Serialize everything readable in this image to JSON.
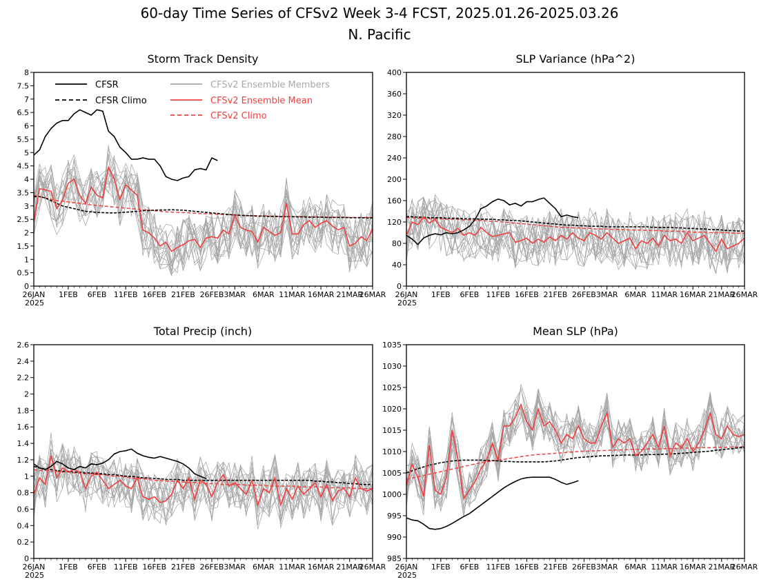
{
  "figure": {
    "title_line1": "60-day Time Series of CFSv2 Week 3-4 FCST, 2025.01.26-2025.03.26",
    "title_line2": "N. Pacific"
  },
  "colors": {
    "cfsr": "#000000",
    "cfsr_climo": "#000000",
    "members": "#a8a8a8",
    "ens_mean": "#f04040",
    "cfsv2_climo": "#f04040"
  },
  "legend": {
    "cfsr": "CFSR",
    "cfsr_climo": "CFSR Climo",
    "members": "CFSv2 Ensemble Members",
    "ens_mean": "CFSv2 Ensemble Mean",
    "cfsv2_climo": "CFSv2 Climo"
  },
  "x_axis": {
    "tick_days": [
      0,
      6,
      11,
      16,
      21,
      26,
      31,
      35,
      40,
      45,
      50,
      55,
      59
    ],
    "tick_labels": [
      "26JAN",
      "1FEB",
      "6FEB",
      "11FEB",
      "16FEB",
      "21FEB",
      "26FEB",
      "3MAR",
      "6MAR",
      "11MAR",
      "16MAR",
      "21MAR",
      "26MAR"
    ],
    "year_label": "2025"
  },
  "chart_data": [
    {
      "type": "line",
      "title": "Storm Track Density",
      "ylim": [
        0,
        8
      ],
      "yticks": [
        0,
        0.5,
        1,
        1.5,
        2,
        2.5,
        3,
        3.5,
        4,
        4.5,
        5,
        5.5,
        6,
        6.5,
        7,
        7.5,
        8
      ],
      "ytick_labels": [
        "0",
        "0.5",
        "1",
        "1.5",
        "2",
        "2.5",
        "3",
        "3.5",
        "4",
        "4.5",
        "5",
        "5.5",
        "6",
        "6.5",
        "7",
        "7.5",
        "8"
      ],
      "members_base": 2.3,
      "members_spread": 1.0,
      "cfsr": [
        4.9,
        5.1,
        5.6,
        5.9,
        6.1,
        6.2,
        6.2,
        6.45,
        6.6,
        6.5,
        6.4,
        6.6,
        6.55,
        5.8,
        5.6,
        5.2,
        5.0,
        4.75,
        4.75,
        4.8,
        4.75,
        4.75,
        4.5,
        4.1,
        4.0,
        3.95,
        4.05,
        4.1,
        4.35,
        4.4,
        4.35,
        4.8,
        4.7
      ],
      "cfsr_climo": [
        3.35,
        3.35,
        3.3,
        3.2,
        3.1,
        3.0,
        2.95,
        2.9,
        2.85,
        2.8,
        2.78,
        2.76,
        2.75,
        2.74,
        2.74,
        2.75,
        2.77,
        2.78,
        2.8,
        2.82,
        2.83,
        2.84,
        2.85,
        2.85,
        2.86,
        2.85,
        2.84,
        2.82,
        2.8,
        2.78,
        2.76,
        2.74,
        2.72,
        2.7,
        2.68,
        2.66,
        2.65,
        2.64,
        2.63,
        2.62,
        2.62,
        2.61,
        2.61,
        2.6,
        2.6,
        2.6,
        2.59,
        2.59,
        2.58,
        2.58,
        2.58,
        2.57,
        2.57,
        2.57,
        2.57,
        2.56,
        2.56,
        2.56,
        2.55,
        2.55
      ],
      "cfsv2_climo": [
        3.4,
        3.35,
        3.3,
        3.25,
        3.2,
        3.18,
        3.15,
        3.12,
        3.1,
        3.07,
        3.04,
        3.02,
        3.0,
        2.98,
        2.96,
        2.94,
        2.92,
        2.9,
        2.88,
        2.86,
        2.84,
        2.82,
        2.8,
        2.78,
        2.77,
        2.76,
        2.75,
        2.74,
        2.73,
        2.72,
        2.71,
        2.7,
        2.69,
        2.68,
        2.67,
        2.66,
        2.65,
        2.64,
        2.64,
        2.63,
        2.63,
        2.62,
        2.62,
        2.61,
        2.61,
        2.6,
        2.6,
        2.6,
        2.59,
        2.59,
        2.59,
        2.58,
        2.58,
        2.58,
        2.58,
        2.57,
        2.57,
        2.57,
        2.57,
        2.57
      ],
      "ens_mean": [
        2.4,
        3.65,
        3.6,
        3.55,
        2.9,
        3.2,
        3.85,
        4.0,
        3.4,
        3.1,
        3.7,
        3.4,
        3.3,
        4.45,
        4.0,
        3.25,
        3.8,
        3.6,
        3.4,
        2.1,
        2.0,
        1.8,
        1.5,
        1.65,
        1.3,
        1.45,
        1.55,
        1.7,
        1.75,
        1.45,
        1.8,
        1.85,
        1.8,
        2.1,
        1.95,
        2.65,
        2.2,
        2.1,
        2.05,
        1.65,
        2.2,
        2.05,
        1.9,
        2.0,
        3.1,
        1.95,
        1.95,
        2.3,
        2.45,
        2.2,
        2.35,
        2.45,
        2.25,
        2.1,
        2.2,
        1.5,
        1.6,
        1.85,
        1.7,
        2.15
      ]
    },
    {
      "type": "line",
      "title": "SLP Variance (hPa^2)",
      "ylim": [
        0,
        400
      ],
      "yticks": [
        0,
        40,
        80,
        120,
        160,
        200,
        240,
        280,
        320,
        360,
        400
      ],
      "ytick_labels": [
        "0",
        "40",
        "80",
        "120",
        "160",
        "200",
        "240",
        "280",
        "320",
        "360",
        "400"
      ],
      "members_base": 95,
      "members_spread": 50,
      "cfsr": [
        95,
        88,
        78,
        90,
        95,
        98,
        96,
        100,
        98,
        100,
        105,
        112,
        125,
        145,
        150,
        158,
        163,
        160,
        152,
        155,
        150,
        158,
        158,
        162,
        165,
        155,
        145,
        130,
        133,
        130,
        128
      ],
      "cfsr_climo": [
        130,
        130,
        129,
        129,
        128,
        128,
        128,
        127,
        127,
        127,
        126,
        126,
        126,
        125,
        125,
        125,
        124,
        124,
        123,
        123,
        122,
        121,
        120,
        119,
        118,
        117,
        116,
        115,
        114,
        114,
        113,
        113,
        112,
        112,
        112,
        111,
        111,
        111,
        111,
        111,
        111,
        111,
        111,
        110,
        110,
        110,
        110,
        109,
        109,
        108,
        108,
        107,
        107,
        106,
        106,
        105,
        104,
        104,
        103,
        103
      ],
      "cfsv2_climo": [
        128,
        128,
        127,
        127,
        126,
        126,
        126,
        125,
        125,
        125,
        124,
        124,
        123,
        123,
        122,
        121,
        121,
        120,
        119,
        118,
        117,
        116,
        115,
        114,
        113,
        112,
        111,
        110,
        110,
        109,
        109,
        108,
        108,
        107,
        107,
        107,
        106,
        106,
        106,
        105,
        105,
        105,
        104,
        104,
        104,
        103,
        103,
        103,
        102,
        102,
        101,
        101,
        101,
        100,
        100,
        100,
        100,
        99,
        99,
        99
      ],
      "ens_mean": [
        95,
        120,
        115,
        130,
        118,
        125,
        110,
        105,
        100,
        108,
        95,
        100,
        95,
        110,
        100,
        93,
        95,
        98,
        100,
        82,
        85,
        90,
        80,
        88,
        82,
        92,
        85,
        95,
        88,
        100,
        90,
        85,
        100,
        95,
        88,
        100,
        90,
        80,
        85,
        90,
        70,
        85,
        80,
        90,
        75,
        95,
        85,
        88,
        80,
        100,
        85,
        90,
        95,
        80,
        65,
        88,
        70,
        75,
        80,
        90
      ]
    },
    {
      "type": "line",
      "title": "Total Precip (inch)",
      "ylim": [
        0,
        2.6
      ],
      "yticks": [
        0,
        0.2,
        0.4,
        0.6,
        0.8,
        1,
        1.2,
        1.4,
        1.6,
        1.8,
        2,
        2.2,
        2.4,
        2.6
      ],
      "ytick_labels": [
        "0",
        "0.2",
        "0.4",
        "0.6",
        "0.8",
        "1",
        "1.2",
        "1.4",
        "1.6",
        "1.8",
        "2",
        "2.2",
        "2.4",
        "2.6"
      ],
      "members_base": 0.88,
      "members_spread": 0.3,
      "cfsr": [
        1.15,
        1.1,
        1.08,
        1.12,
        1.18,
        1.15,
        1.1,
        1.08,
        1.12,
        1.1,
        1.15,
        1.14,
        1.16,
        1.2,
        1.27,
        1.3,
        1.31,
        1.33,
        1.28,
        1.25,
        1.23,
        1.22,
        1.24,
        1.22,
        1.2,
        1.18,
        1.15,
        1.1,
        1.03,
        1.0,
        0.97
      ],
      "cfsr_climo": [
        1.12,
        1.1,
        1.09,
        1.08,
        1.07,
        1.06,
        1.06,
        1.05,
        1.05,
        1.04,
        1.04,
        1.03,
        1.03,
        1.02,
        1.02,
        1.01,
        1.0,
        1.0,
        0.99,
        0.98,
        0.98,
        0.97,
        0.97,
        0.96,
        0.96,
        0.96,
        0.95,
        0.95,
        0.95,
        0.95,
        0.95,
        0.95,
        0.95,
        0.95,
        0.95,
        0.95,
        0.95,
        0.95,
        0.95,
        0.95,
        0.95,
        0.95,
        0.95,
        0.95,
        0.95,
        0.95,
        0.95,
        0.95,
        0.95,
        0.94,
        0.94,
        0.93,
        0.93,
        0.92,
        0.92,
        0.91,
        0.91,
        0.9,
        0.9,
        0.9
      ],
      "cfsv2_climo": [
        1.08,
        1.07,
        1.07,
        1.06,
        1.06,
        1.05,
        1.05,
        1.04,
        1.04,
        1.03,
        1.03,
        1.02,
        1.02,
        1.01,
        1.0,
        1.0,
        0.99,
        0.98,
        0.97,
        0.97,
        0.96,
        0.95,
        0.95,
        0.94,
        0.94,
        0.93,
        0.93,
        0.92,
        0.92,
        0.92,
        0.91,
        0.91,
        0.91,
        0.9,
        0.9,
        0.9,
        0.9,
        0.89,
        0.89,
        0.89,
        0.89,
        0.88,
        0.88,
        0.88,
        0.88,
        0.88,
        0.87,
        0.87,
        0.87,
        0.87,
        0.87,
        0.86,
        0.86,
        0.86,
        0.86,
        0.86,
        0.85,
        0.85,
        0.85,
        0.85
      ],
      "ens_mean": [
        0.78,
        0.98,
        0.9,
        1.25,
        0.98,
        1.1,
        1.05,
        1.08,
        1.05,
        0.85,
        1.0,
        1.05,
        0.95,
        0.85,
        0.9,
        0.95,
        0.88,
        0.85,
        0.98,
        0.75,
        0.72,
        0.75,
        0.68,
        0.7,
        0.78,
        0.95,
        0.85,
        0.98,
        0.72,
        0.95,
        0.9,
        0.75,
        0.92,
        1.02,
        0.88,
        0.92,
        0.85,
        0.78,
        0.95,
        0.65,
        0.85,
        0.8,
        0.98,
        0.65,
        0.85,
        0.72,
        0.88,
        0.78,
        0.85,
        0.92,
        0.75,
        0.9,
        0.7,
        0.82,
        0.85,
        0.75,
        0.98,
        0.85,
        0.82,
        0.85
      ]
    },
    {
      "type": "line",
      "title": "Mean SLP (hPa)",
      "ylim": [
        985,
        1035
      ],
      "yticks": [
        985,
        990,
        995,
        1000,
        1005,
        1010,
        1015,
        1020,
        1025,
        1030,
        1035
      ],
      "ytick_labels": [
        "985",
        "990",
        "995",
        "1000",
        "1005",
        "1010",
        "1015",
        "1020",
        "1025",
        "1030",
        "1035"
      ],
      "members_base": 0,
      "members_spread": 5,
      "cfsr": [
        994.5,
        994,
        993.8,
        993,
        992,
        991.8,
        992,
        992.5,
        993.2,
        994,
        994.8,
        995.5,
        996.5,
        997.5,
        998.5,
        999.5,
        1000.5,
        1001.5,
        1002.3,
        1003,
        1003.6,
        1003.9,
        1004,
        1004,
        1004,
        1004,
        1003.5,
        1002.8,
        1002.3,
        1002.7,
        1003.2
      ],
      "cfsr_climo": [
        1005,
        1005.5,
        1006,
        1006.4,
        1006.8,
        1007.1,
        1007.4,
        1007.6,
        1007.8,
        1007.9,
        1008,
        1008,
        1008,
        1008,
        1007.9,
        1007.9,
        1007.8,
        1007.7,
        1007.7,
        1007.6,
        1007.6,
        1007.6,
        1007.6,
        1007.6,
        1007.6,
        1007.7,
        1007.8,
        1008,
        1008.2,
        1008.4,
        1008.6,
        1008.7,
        1008.8,
        1008.9,
        1009,
        1009,
        1009.1,
        1009.1,
        1009.2,
        1009.2,
        1009.2,
        1009.2,
        1009.3,
        1009.3,
        1009.3,
        1009.4,
        1009.4,
        1009.5,
        1009.6,
        1009.7,
        1009.8,
        1009.9,
        1010,
        1010.1,
        1010.3,
        1010.4,
        1010.6,
        1010.7,
        1010.9,
        1011
      ],
      "cfsv2_climo": [
        1003.5,
        1003.8,
        1004.1,
        1004.4,
        1004.7,
        1005,
        1005.3,
        1005.6,
        1005.9,
        1006.2,
        1006.5,
        1006.8,
        1007.1,
        1007.4,
        1007.6,
        1007.8,
        1008,
        1008.2,
        1008.4,
        1008.6,
        1008.8,
        1009,
        1009.2,
        1009.3,
        1009.4,
        1009.5,
        1009.6,
        1009.7,
        1009.8,
        1009.9,
        1010,
        1010.1,
        1010.1,
        1010.2,
        1010.2,
        1010.3,
        1010.3,
        1010.4,
        1010.4,
        1010.5,
        1010.5,
        1010.5,
        1010.6,
        1010.6,
        1010.6,
        1010.7,
        1010.7,
        1010.7,
        1010.8,
        1010.8,
        1010.8,
        1010.9,
        1010.9,
        1010.9,
        1011,
        1011,
        1011,
        1011.1,
        1011.1,
        1011.2
      ],
      "ens_mean": [
        1002,
        1007,
        1004,
        999.5,
        1011.5,
        1001,
        1000,
        1004,
        1015,
        1008,
        999,
        1001,
        1003,
        1006,
        1008,
        1012,
        1008,
        1016,
        1016,
        1018,
        1021,
        1017,
        1015,
        1020,
        1016,
        1017,
        1015,
        1012,
        1014,
        1013,
        1016,
        1013,
        1012,
        1012,
        1016,
        1019,
        1011,
        1013,
        1012,
        1013,
        1009,
        1010,
        1012,
        1014,
        1011,
        1016,
        1009,
        1012,
        1011,
        1013,
        1010,
        1012,
        1015,
        1019,
        1014,
        1013,
        1016,
        1014,
        1013.5,
        1014
      ]
    }
  ]
}
